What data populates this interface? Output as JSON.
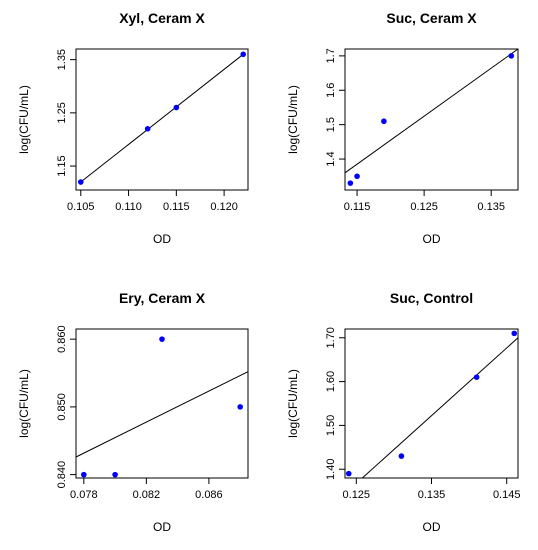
{
  "chart_data": [
    {
      "type": "scatter",
      "title": "Xyl, Ceram X",
      "xlabel": "OD",
      "ylabel": "log(CFU/mL)",
      "xlim": [
        0.1045,
        0.1225
      ],
      "ylim": [
        1.105,
        1.37
      ],
      "xticks": [
        0.105,
        0.11,
        0.115,
        0.12
      ],
      "xtick_labels": [
        "0.105",
        "0.110",
        "0.115",
        "0.120"
      ],
      "yticks": [
        1.15,
        1.25,
        1.35
      ],
      "ytick_labels": [
        "1.15",
        "1.25",
        "1.35"
      ],
      "series": [
        {
          "x": [
            0.105,
            0.112,
            0.115,
            0.122
          ],
          "y": [
            1.12,
            1.22,
            1.26,
            1.36
          ]
        }
      ],
      "fit_line": {
        "x": [
          0.105,
          0.122
        ],
        "y": [
          1.12,
          1.36
        ]
      },
      "point_color": "#0000ff",
      "line_color": "#000000",
      "grid": false
    },
    {
      "type": "scatter",
      "title": "Suc, Ceram X",
      "xlabel": "OD",
      "ylabel": "log(CFU/mL)",
      "xlim": [
        0.1132,
        0.139
      ],
      "ylim": [
        1.31,
        1.72
      ],
      "xticks": [
        0.115,
        0.125,
        0.135
      ],
      "xtick_labels": [
        "0.115",
        "0.125",
        "0.135"
      ],
      "yticks": [
        1.4,
        1.5,
        1.6,
        1.7
      ],
      "ytick_labels": [
        "1.4",
        "1.5",
        "1.6",
        "1.7"
      ],
      "series": [
        {
          "x": [
            0.114,
            0.115,
            0.119,
            0.138
          ],
          "y": [
            1.33,
            1.35,
            1.51,
            1.7
          ]
        }
      ],
      "fit_line": {
        "x": [
          0.1132,
          0.139
        ],
        "y": [
          1.36,
          1.72
        ]
      },
      "point_color": "#0000ff",
      "line_color": "#000000",
      "grid": false
    },
    {
      "type": "scatter",
      "title": "Ery, Ceram X",
      "xlabel": "OD",
      "ylabel": "log(CFU/mL)",
      "xlim": [
        0.0775,
        0.0885
      ],
      "ylim": [
        0.8395,
        0.8615
      ],
      "xticks": [
        0.078,
        0.082,
        0.086
      ],
      "xtick_labels": [
        "0.078",
        "0.082",
        "0.086"
      ],
      "yticks": [
        0.84,
        0.85,
        0.86
      ],
      "ytick_labels": [
        "0.840",
        "0.850",
        "0.860"
      ],
      "series": [
        {
          "x": [
            0.078,
            0.08,
            0.083,
            0.088
          ],
          "y": [
            0.84,
            0.84,
            0.86,
            0.85
          ]
        }
      ],
      "fit_line": {
        "x": [
          0.0775,
          0.0885
        ],
        "y": [
          0.8426,
          0.8552
        ]
      },
      "point_color": "#0000ff",
      "line_color": "#000000",
      "grid": false
    },
    {
      "type": "scatter",
      "title": "Suc, Control",
      "xlabel": "OD",
      "ylabel": "log(CFU/mL)",
      "xlim": [
        0.1235,
        0.1465
      ],
      "ylim": [
        1.38,
        1.72
      ],
      "xticks": [
        0.125,
        0.135,
        0.145
      ],
      "xtick_labels": [
        "0.125",
        "0.135",
        "0.145"
      ],
      "yticks": [
        1.4,
        1.5,
        1.6,
        1.7
      ],
      "ytick_labels": [
        "1.40",
        "1.50",
        "1.60",
        "1.70"
      ],
      "series": [
        {
          "x": [
            0.124,
            0.131,
            0.141,
            0.146
          ],
          "y": [
            1.39,
            1.43,
            1.61,
            1.71
          ]
        }
      ],
      "fit_line": {
        "x": [
          0.1258,
          0.1465
        ],
        "y": [
          1.38,
          1.7
        ]
      },
      "point_color": "#0000ff",
      "line_color": "#000000",
      "grid": false
    }
  ]
}
